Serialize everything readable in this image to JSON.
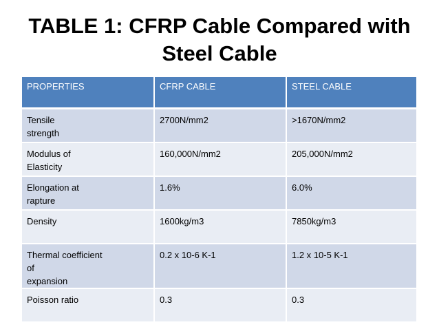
{
  "title": {
    "line1": "TABLE 1: CFRP Cable Compared with",
    "line2": "Steel Cable"
  },
  "table": {
    "headers": [
      "PROPERTIES",
      "CFRP CABLE",
      "STEEL CABLE"
    ],
    "rows": [
      [
        "Tensile\nstrength",
        "2700N/mm2",
        ">1670N/mm2"
      ],
      [
        "Modulus of\nElasticity",
        "160,000N/mm2",
        "205,000N/mm2"
      ],
      [
        "Elongation at\nrapture",
        "1.6%",
        "6.0%"
      ],
      [
        "Density",
        "1600kg/m3",
        "7850kg/m3"
      ],
      [
        "Thermal coefficient\nof\nexpansion",
        "0.2 x 10-6 K-1",
        "1.2 x 10-5 K-1"
      ],
      [
        "Poisson ratio",
        "0.3",
        "0.3"
      ]
    ]
  },
  "colors": {
    "header": "#4f81bd",
    "row_dark": "#d0d8e8",
    "row_light": "#e9edf4"
  }
}
